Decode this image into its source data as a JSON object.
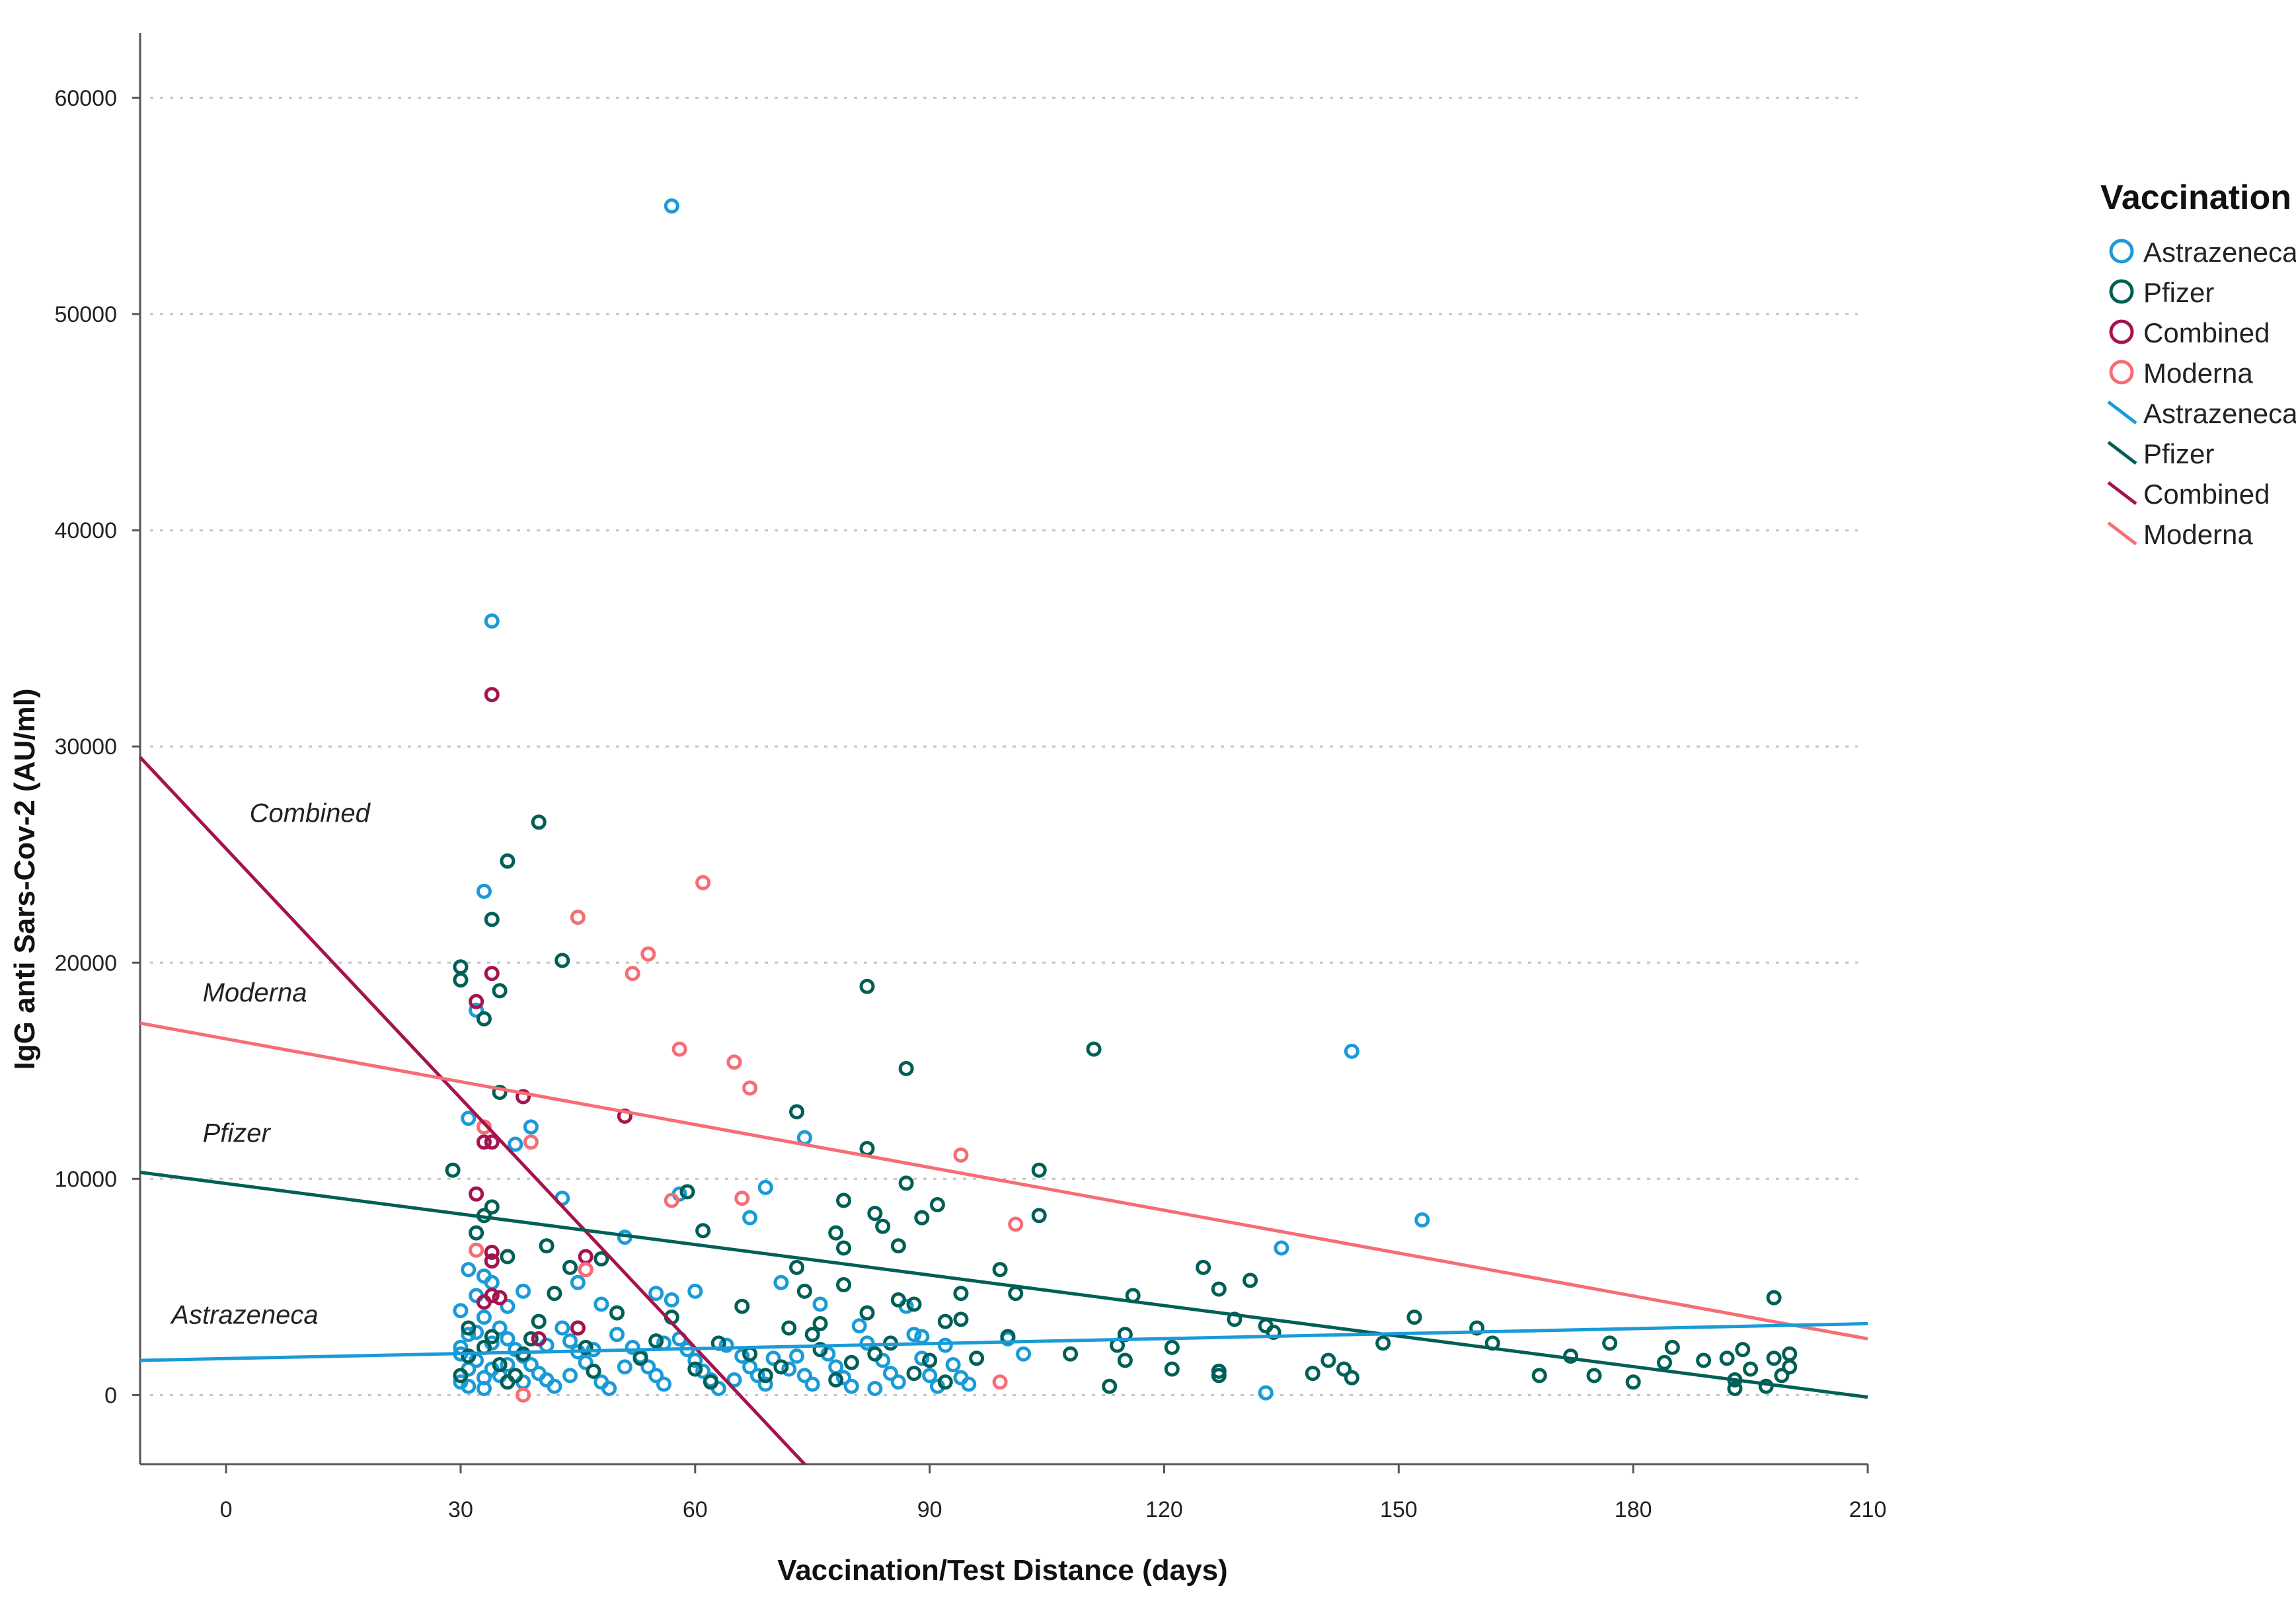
{
  "chart_data": {
    "type": "scatter",
    "title": "",
    "xlabel": "Vaccination/Test Distance (days)",
    "ylabel": "IgG anti Sars-Cov-2 (AU/ml)",
    "xlim": [
      -11,
      210
    ],
    "ylim": [
      -3200,
      63000
    ],
    "xticks": [
      0,
      30,
      60,
      90,
      120,
      150,
      180,
      210
    ],
    "yticks": [
      0,
      10000,
      20000,
      30000,
      40000,
      50000,
      60000
    ],
    "grid": "horizontal dotted",
    "legend": {
      "title": "Vaccination",
      "position": "right",
      "entries": [
        {
          "label": "Astrazeneca",
          "kind": "marker",
          "color": "#1a9bd7"
        },
        {
          "label": "Pfizer",
          "kind": "marker",
          "color": "#005f56"
        },
        {
          "label": "Combined",
          "kind": "marker",
          "color": "#a5134f"
        },
        {
          "label": "Moderna",
          "kind": "marker",
          "color": "#f76d75"
        },
        {
          "label": "Astrazeneca",
          "kind": "line",
          "color": "#1a9bd7"
        },
        {
          "label": "Pfizer",
          "kind": "line",
          "color": "#005f56"
        },
        {
          "label": "Combined",
          "kind": "line",
          "color": "#a5134f"
        },
        {
          "label": "Moderna",
          "kind": "line",
          "color": "#f76d75"
        }
      ]
    },
    "fit_lines": [
      {
        "name": "Combined",
        "color": "#a5134f",
        "x": [
          -11,
          74
        ],
        "y": [
          29500,
          -3200
        ],
        "label": "Combined",
        "label_at": [
          3,
          26500
        ]
      },
      {
        "name": "Moderna",
        "color": "#f76d75",
        "x": [
          -11,
          210
        ],
        "y": [
          17200,
          2600
        ],
        "label": "Moderna",
        "label_at": [
          -3,
          18200
        ]
      },
      {
        "name": "Pfizer",
        "color": "#005f56",
        "x": [
          -11,
          210
        ],
        "y": [
          10300,
          -100
        ],
        "label": "Pfizer",
        "label_at": [
          -3,
          11700
        ]
      },
      {
        "name": "Astrazeneca",
        "color": "#1a9bd7",
        "x": [
          -11,
          210
        ],
        "y": [
          1600,
          3300
        ],
        "label": "Astrazeneca",
        "label_at": [
          -7,
          3300
        ]
      }
    ],
    "series": [
      {
        "name": "Astrazeneca",
        "color": "#1a9bd7",
        "points": [
          [
            57,
            55000
          ],
          [
            34,
            35800
          ],
          [
            33,
            23300
          ],
          [
            32,
            17800
          ],
          [
            31,
            12800
          ],
          [
            39,
            12400
          ],
          [
            37,
            11600
          ],
          [
            43,
            9100
          ],
          [
            58,
            9300
          ],
          [
            69,
            9600
          ],
          [
            67,
            8200
          ],
          [
            74,
            11900
          ],
          [
            144,
            15900
          ],
          [
            153,
            8100
          ],
          [
            135,
            6800
          ],
          [
            133,
            100
          ],
          [
            33,
            5500
          ],
          [
            31,
            5800
          ],
          [
            36,
            4100
          ],
          [
            34,
            5200
          ],
          [
            38,
            4800
          ],
          [
            45,
            5200
          ],
          [
            48,
            4200
          ],
          [
            51,
            7300
          ],
          [
            55,
            4700
          ],
          [
            57,
            4400
          ],
          [
            60,
            4800
          ],
          [
            33,
            3600
          ],
          [
            31,
            2800
          ],
          [
            30,
            2200
          ],
          [
            32,
            1600
          ],
          [
            34,
            1200
          ],
          [
            35,
            900
          ],
          [
            30,
            600
          ],
          [
            31,
            400
          ],
          [
            33,
            300
          ],
          [
            36,
            2600
          ],
          [
            37,
            2100
          ],
          [
            38,
            1800
          ],
          [
            39,
            1400
          ],
          [
            40,
            1000
          ],
          [
            41,
            700
          ],
          [
            42,
            400
          ],
          [
            43,
            3100
          ],
          [
            44,
            2500
          ],
          [
            45,
            2000
          ],
          [
            46,
            1500
          ],
          [
            47,
            1100
          ],
          [
            48,
            600
          ],
          [
            49,
            300
          ],
          [
            50,
            2800
          ],
          [
            52,
            2200
          ],
          [
            53,
            1800
          ],
          [
            54,
            1300
          ],
          [
            55,
            900
          ],
          [
            56,
            500
          ],
          [
            58,
            2600
          ],
          [
            59,
            2100
          ],
          [
            60,
            1600
          ],
          [
            61,
            1100
          ],
          [
            62,
            700
          ],
          [
            63,
            300
          ],
          [
            64,
            2300
          ],
          [
            66,
            1800
          ],
          [
            67,
            1300
          ],
          [
            68,
            900
          ],
          [
            69,
            500
          ],
          [
            70,
            1700
          ],
          [
            71,
            5200
          ],
          [
            72,
            1200
          ],
          [
            74,
            900
          ],
          [
            75,
            500
          ],
          [
            76,
            4200
          ],
          [
            77,
            1900
          ],
          [
            78,
            1300
          ],
          [
            79,
            800
          ],
          [
            80,
            400
          ],
          [
            81,
            3200
          ],
          [
            82,
            2400
          ],
          [
            84,
            1600
          ],
          [
            85,
            1000
          ],
          [
            86,
            600
          ],
          [
            87,
            4100
          ],
          [
            88,
            2800
          ],
          [
            89,
            1700
          ],
          [
            90,
            900
          ],
          [
            91,
            400
          ],
          [
            92,
            2300
          ],
          [
            93,
            1400
          ],
          [
            94,
            800
          ],
          [
            95,
            500
          ],
          [
            100,
            2600
          ],
          [
            102,
            1900
          ],
          [
            30,
            3900
          ],
          [
            32,
            4600
          ],
          [
            35,
            3100
          ],
          [
            31,
            1200
          ],
          [
            33,
            800
          ],
          [
            34,
            2400
          ],
          [
            36,
            1400
          ],
          [
            30,
            1900
          ],
          [
            32,
            2900
          ],
          [
            38,
            600
          ],
          [
            41,
            2300
          ],
          [
            44,
            900
          ],
          [
            47,
            2100
          ],
          [
            51,
            1300
          ],
          [
            56,
            2400
          ],
          [
            65,
            700
          ],
          [
            73,
            1800
          ],
          [
            83,
            300
          ],
          [
            89,
            2700
          ]
        ]
      },
      {
        "name": "Pfizer",
        "color": "#005f56",
        "points": [
          [
            40,
            26500
          ],
          [
            36,
            24700
          ],
          [
            34,
            22000
          ],
          [
            43,
            20100
          ],
          [
            30,
            19800
          ],
          [
            30,
            19200
          ],
          [
            35,
            18700
          ],
          [
            33,
            17400
          ],
          [
            82,
            18900
          ],
          [
            29,
            10400
          ],
          [
            87,
            15100
          ],
          [
            111,
            16000
          ],
          [
            35,
            14000
          ],
          [
            73,
            13100
          ],
          [
            82,
            11400
          ],
          [
            59,
            9400
          ],
          [
            34,
            8700
          ],
          [
            33,
            8300
          ],
          [
            32,
            7500
          ],
          [
            36,
            6400
          ],
          [
            41,
            6900
          ],
          [
            61,
            7600
          ],
          [
            79,
            9000
          ],
          [
            83,
            8400
          ],
          [
            87,
            9800
          ],
          [
            91,
            8800
          ],
          [
            104,
            10400
          ],
          [
            104,
            8300
          ],
          [
            84,
            7800
          ],
          [
            89,
            8200
          ],
          [
            78,
            7500
          ],
          [
            79,
            6800
          ],
          [
            86,
            6900
          ],
          [
            99,
            5800
          ],
          [
            125,
            5900
          ],
          [
            131,
            5300
          ],
          [
            127,
            4900
          ],
          [
            116,
            4600
          ],
          [
            101,
            4700
          ],
          [
            94,
            4700
          ],
          [
            88,
            4200
          ],
          [
            73,
            5900
          ],
          [
            74,
            4800
          ],
          [
            79,
            5100
          ],
          [
            76,
            3300
          ],
          [
            82,
            3800
          ],
          [
            92,
            3400
          ],
          [
            94,
            3500
          ],
          [
            108,
            1900
          ],
          [
            114,
            2300
          ],
          [
            115,
            2800
          ],
          [
            121,
            2200
          ],
          [
            129,
            3500
          ],
          [
            133,
            3200
          ],
          [
            139,
            1000
          ],
          [
            141,
            1600
          ],
          [
            143,
            1200
          ],
          [
            144,
            800
          ],
          [
            148,
            2400
          ],
          [
            152,
            3600
          ],
          [
            160,
            3100
          ],
          [
            162,
            2400
          ],
          [
            168,
            900
          ],
          [
            172,
            1800
          ],
          [
            175,
            900
          ],
          [
            177,
            2400
          ],
          [
            180,
            600
          ],
          [
            184,
            1500
          ],
          [
            185,
            2200
          ],
          [
            189,
            1600
          ],
          [
            192,
            1700
          ],
          [
            193,
            700
          ],
          [
            194,
            2100
          ],
          [
            195,
            1200
          ],
          [
            197,
            400
          ],
          [
            198,
            4500
          ],
          [
            198,
            1700
          ],
          [
            199,
            900
          ],
          [
            200,
            1300
          ],
          [
            200,
            1900
          ],
          [
            193,
            300
          ],
          [
            113,
            400
          ],
          [
            115,
            1600
          ],
          [
            121,
            1200
          ],
          [
            127,
            1100
          ],
          [
            127,
            900
          ],
          [
            134,
            2900
          ],
          [
            31,
            3100
          ],
          [
            33,
            2200
          ],
          [
            35,
            1400
          ],
          [
            37,
            900
          ],
          [
            39,
            2600
          ],
          [
            42,
            4700
          ],
          [
            45,
            3100
          ],
          [
            47,
            1100
          ],
          [
            50,
            3800
          ],
          [
            55,
            2500
          ],
          [
            60,
            1200
          ],
          [
            63,
            2400
          ],
          [
            66,
            4100
          ],
          [
            69,
            900
          ],
          [
            72,
            3100
          ],
          [
            76,
            2100
          ],
          [
            78,
            700
          ],
          [
            80,
            1500
          ],
          [
            85,
            2400
          ],
          [
            88,
            1000
          ],
          [
            92,
            600
          ],
          [
            96,
            1700
          ],
          [
            100,
            2700
          ],
          [
            30,
            900
          ],
          [
            31,
            1800
          ],
          [
            34,
            2700
          ],
          [
            36,
            600
          ],
          [
            38,
            1900
          ],
          [
            40,
            3400
          ],
          [
            44,
            5900
          ],
          [
            46,
            2200
          ],
          [
            48,
            6300
          ],
          [
            53,
            1700
          ],
          [
            57,
            3600
          ],
          [
            62,
            600
          ],
          [
            67,
            1900
          ],
          [
            71,
            1300
          ],
          [
            75,
            2800
          ],
          [
            83,
            1900
          ],
          [
            86,
            4400
          ],
          [
            90,
            1600
          ]
        ]
      },
      {
        "name": "Combined",
        "color": "#a5134f",
        "points": [
          [
            34,
            32400
          ],
          [
            34,
            19500
          ],
          [
            32,
            18200
          ],
          [
            38,
            13800
          ],
          [
            51,
            12900
          ],
          [
            34,
            11700
          ],
          [
            33,
            11700
          ],
          [
            32,
            9300
          ],
          [
            34,
            6600
          ],
          [
            34,
            6200
          ],
          [
            46,
            6400
          ],
          [
            46,
            5800
          ],
          [
            34,
            4600
          ],
          [
            35,
            4500
          ],
          [
            33,
            4300
          ],
          [
            40,
            2600
          ],
          [
            45,
            3100
          ]
        ]
      },
      {
        "name": "Moderna",
        "color": "#f76d75",
        "points": [
          [
            61,
            23700
          ],
          [
            45,
            22100
          ],
          [
            54,
            20400
          ],
          [
            52,
            19500
          ],
          [
            58,
            16000
          ],
          [
            65,
            15400
          ],
          [
            67,
            14200
          ],
          [
            33,
            12400
          ],
          [
            39,
            11700
          ],
          [
            94,
            11100
          ],
          [
            57,
            9000
          ],
          [
            66,
            9100
          ],
          [
            101,
            7900
          ],
          [
            32,
            6700
          ],
          [
            46,
            5800
          ],
          [
            99,
            600
          ],
          [
            38,
            0
          ]
        ]
      }
    ]
  }
}
